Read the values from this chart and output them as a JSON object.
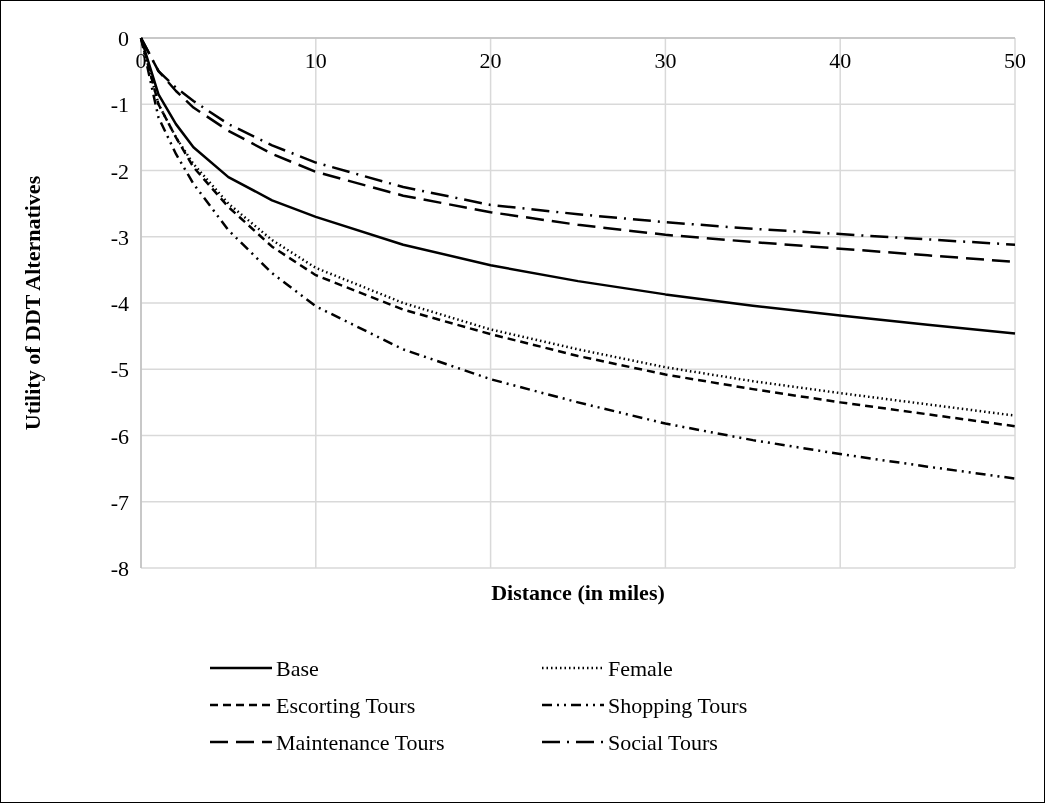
{
  "chart_data": {
    "type": "line",
    "xlabel": "Distance (in miles)",
    "ylabel": "Utility of DDT Alternatives",
    "x": [
      0,
      1,
      2,
      3,
      5,
      7.5,
      10,
      15,
      20,
      25,
      30,
      35,
      40,
      45,
      50
    ],
    "xlim": [
      0,
      50
    ],
    "xticks": [
      0,
      10,
      20,
      30,
      40,
      50
    ],
    "ylim": [
      -8,
      0
    ],
    "yticks": [
      -8,
      -7,
      -6,
      -5,
      -4,
      -3,
      -2,
      -1,
      0
    ],
    "grid": true,
    "legend": "bottom",
    "marker": "none",
    "series": [
      {
        "name": "Base",
        "color": "#000000",
        "line_style": "solid",
        "values": [
          0,
          -0.85,
          -1.3,
          -1.65,
          -2.1,
          -2.45,
          -2.7,
          -3.12,
          -3.43,
          -3.67,
          -3.87,
          -4.04,
          -4.19,
          -4.33,
          -4.46
        ]
      },
      {
        "name": "Female",
        "color": "#000000",
        "line_style": "dotted",
        "values": [
          0,
          -1.0,
          -1.5,
          -1.9,
          -2.5,
          -3.05,
          -3.47,
          -4.0,
          -4.4,
          -4.7,
          -4.97,
          -5.18,
          -5.36,
          -5.53,
          -5.7
        ]
      },
      {
        "name": "Escorting Tours",
        "color": "#000000",
        "line_style": "dashed",
        "values": [
          0,
          -1.0,
          -1.5,
          -1.95,
          -2.55,
          -3.15,
          -3.58,
          -4.1,
          -4.47,
          -4.8,
          -5.08,
          -5.3,
          -5.5,
          -5.68,
          -5.86
        ]
      },
      {
        "name": "Shopping Tours",
        "color": "#000000",
        "line_style": "dashdotdot",
        "values": [
          0,
          -1.2,
          -1.75,
          -2.2,
          -2.9,
          -3.55,
          -4.05,
          -4.7,
          -5.15,
          -5.5,
          -5.82,
          -6.07,
          -6.28,
          -6.47,
          -6.65
        ]
      },
      {
        "name": "Maintenance Tours",
        "color": "#000000",
        "line_style": "longdash",
        "values": [
          0,
          -0.5,
          -0.8,
          -1.05,
          -1.4,
          -1.75,
          -2.02,
          -2.38,
          -2.63,
          -2.82,
          -2.97,
          -3.08,
          -3.18,
          -3.28,
          -3.38
        ]
      },
      {
        "name": "Social Tours",
        "color": "#000000",
        "line_style": "longdashdot",
        "values": [
          0,
          -0.5,
          -0.75,
          -0.95,
          -1.3,
          -1.62,
          -1.88,
          -2.25,
          -2.52,
          -2.66,
          -2.78,
          -2.88,
          -2.96,
          -3.04,
          -3.12
        ]
      }
    ]
  }
}
